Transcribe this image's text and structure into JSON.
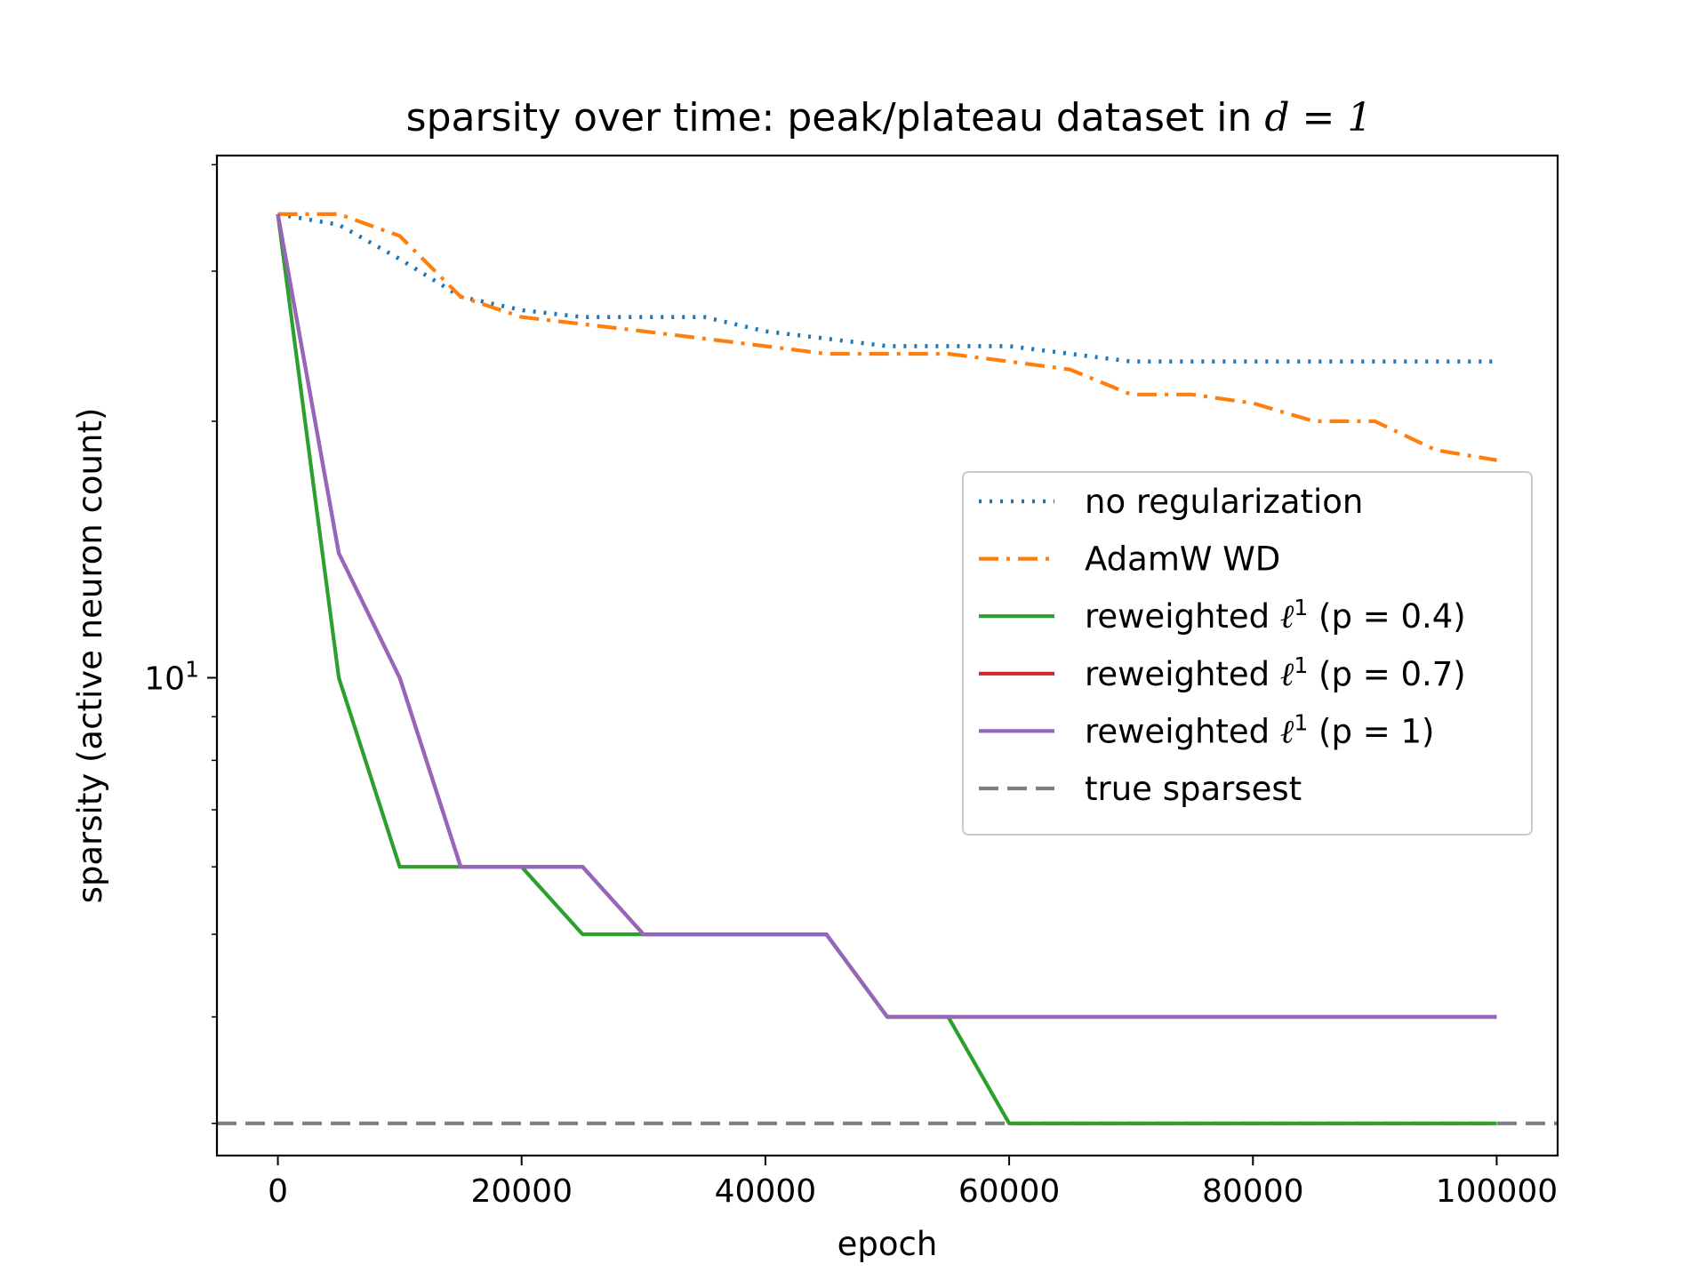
{
  "chart_data": {
    "type": "line",
    "title": "sparsity over time: peak/plateau dataset in",
    "title_math": "d = 1",
    "xlabel": "epoch",
    "ylabel": "sparsity (active neuron count)",
    "x_scale": "linear",
    "y_scale": "log",
    "xlim": [
      -5000,
      105000
    ],
    "ylim": [
      2.75,
      41
    ],
    "x_ticks": [
      0,
      20000,
      40000,
      60000,
      80000,
      100000
    ],
    "x_tick_labels": [
      "0",
      "20000",
      "40000",
      "60000",
      "80000",
      "100000"
    ],
    "y_major_tick": {
      "base": "10",
      "exponent": "1",
      "value": 10
    },
    "grid": false,
    "legend_position": "center-right",
    "series": [
      {
        "name": "no regularization",
        "color": "#1f77b4",
        "style": "dotted",
        "x": [
          0,
          5000,
          10000,
          15000,
          20000,
          25000,
          30000,
          35000,
          40000,
          45000,
          50000,
          55000,
          60000,
          65000,
          70000,
          75000,
          80000,
          85000,
          90000,
          95000,
          100000
        ],
        "y": [
          35,
          34,
          31,
          28,
          27,
          26.5,
          26.5,
          26.5,
          25.5,
          25,
          24.5,
          24.5,
          24.5,
          24,
          23.5,
          23.5,
          23.5,
          23.5,
          23.5,
          23.5,
          23.5
        ]
      },
      {
        "name": "AdamW WD",
        "color": "#ff7f0e",
        "style": "dashdot",
        "x": [
          0,
          5000,
          10000,
          15000,
          20000,
          25000,
          30000,
          35000,
          40000,
          45000,
          50000,
          55000,
          60000,
          65000,
          70000,
          75000,
          80000,
          85000,
          90000,
          95000,
          100000
        ],
        "y": [
          35,
          35,
          33,
          28,
          26.5,
          26,
          25.5,
          25,
          24.5,
          24,
          24,
          24,
          23.5,
          23,
          21.5,
          21.5,
          21,
          20,
          20,
          18.5,
          18
        ]
      },
      {
        "name": "reweighted ℓ¹ (p = 0.4)",
        "color": "#2ca02c",
        "style": "solid",
        "x": [
          0,
          5000,
          10000,
          15000,
          20000,
          25000,
          30000,
          35000,
          40000,
          45000,
          50000,
          55000,
          60000,
          65000,
          70000,
          75000,
          80000,
          85000,
          90000,
          95000,
          100000
        ],
        "y": [
          35,
          10,
          6,
          6,
          6,
          5,
          5,
          5,
          5,
          5,
          4,
          4,
          3,
          3,
          3,
          3,
          3,
          3,
          3,
          3,
          3
        ]
      },
      {
        "name": "reweighted ℓ¹ (p = 0.7)",
        "color": "#d62728",
        "style": "solid",
        "x": [
          0,
          5000,
          10000,
          15000,
          20000,
          25000,
          30000,
          35000,
          40000,
          45000,
          50000,
          55000,
          60000,
          65000,
          70000,
          75000,
          80000,
          85000,
          90000,
          95000,
          100000
        ],
        "y": [
          35,
          14,
          10,
          6,
          6,
          6,
          5,
          5,
          5,
          5,
          4,
          4,
          4,
          4,
          4,
          4,
          4,
          4,
          4,
          4,
          4
        ]
      },
      {
        "name": "reweighted ℓ¹ (p = 1)",
        "color": "#9467bd",
        "style": "solid",
        "x": [
          0,
          5000,
          10000,
          15000,
          20000,
          25000,
          30000,
          35000,
          40000,
          45000,
          50000,
          55000,
          60000,
          65000,
          70000,
          75000,
          80000,
          85000,
          90000,
          95000,
          100000
        ],
        "y": [
          35,
          14,
          10,
          6,
          6,
          6,
          5,
          5,
          5,
          5,
          4,
          4,
          4,
          4,
          4,
          4,
          4,
          4,
          4,
          4,
          4
        ]
      },
      {
        "name": "true sparsest",
        "color": "#7f7f7f",
        "style": "dashed",
        "x": [
          -5000,
          105000
        ],
        "y": [
          3,
          3
        ]
      }
    ],
    "legend": [
      {
        "name": "no regularization",
        "color": "#1f77b4",
        "style": "dotted"
      },
      {
        "name": "AdamW WD",
        "color": "#ff7f0e",
        "style": "dashdot"
      },
      {
        "name": "reweighted",
        "math": "ℓ",
        "sup": "1",
        "suffix": "(p = 0.4)",
        "color": "#2ca02c",
        "style": "solid"
      },
      {
        "name": "reweighted",
        "math": "ℓ",
        "sup": "1",
        "suffix": "(p = 0.7)",
        "color": "#d62728",
        "style": "solid"
      },
      {
        "name": "reweighted",
        "math": "ℓ",
        "sup": "1",
        "suffix": "(p = 1)",
        "color": "#9467bd",
        "style": "solid"
      },
      {
        "name": "true sparsest",
        "color": "#7f7f7f",
        "style": "dashed"
      }
    ]
  }
}
